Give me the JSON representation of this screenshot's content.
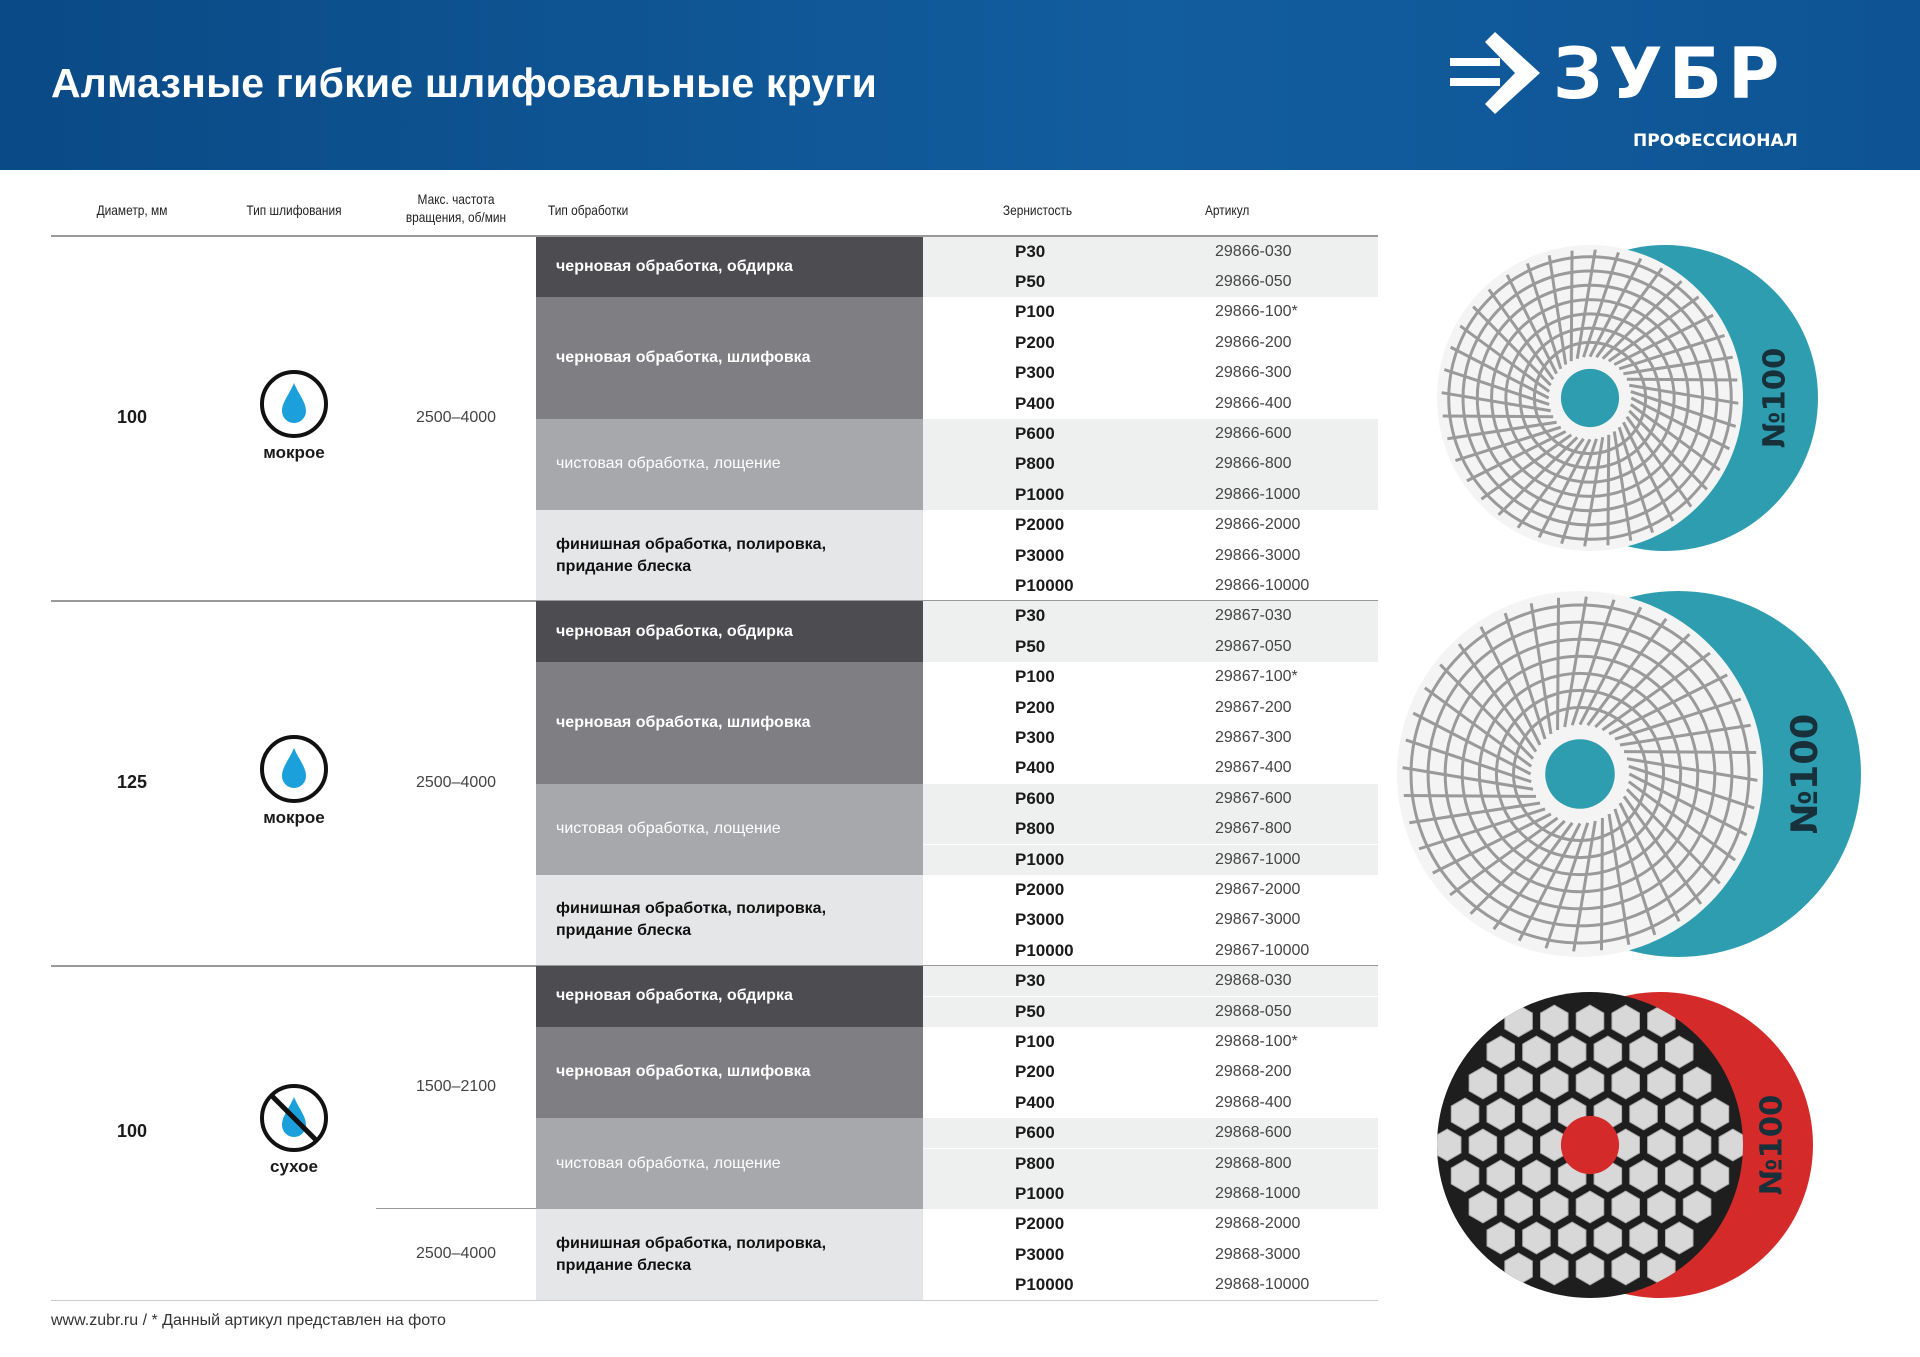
{
  "header": {
    "title": "Алмазные гибкие шлифовальные круги",
    "brand": "ЗУБР",
    "brand_sub": "ПРОФЕССИОНАЛ",
    "bg_color": "#0e5494"
  },
  "columns": {
    "diameter": "Диаметр, мм",
    "grinding_type": "Тип шлифования",
    "max_speed_1": "Макс. частота",
    "max_speed_2": "вращения, об/мин",
    "processing": "Тип обработки",
    "grit": "Зернистость",
    "article": "Артикул"
  },
  "processing_colors": [
    "#4c4c51",
    "#7e7e83",
    "#a7a8ac",
    "#e5e6e7"
  ],
  "sections": [
    {
      "diameter": "100",
      "mode": "мокрое",
      "mode_icon": "water-drop-icon",
      "speeds": [
        {
          "label": "2500–4000",
          "groups": [
            0,
            1,
            2,
            3
          ]
        }
      ],
      "groups": [
        {
          "label": "черновая обработка, обдирка",
          "items": [
            [
              "P30",
              "29866-030"
            ],
            [
              "P50",
              "29866-050"
            ]
          ]
        },
        {
          "label": "черновая обработка, шлифовка",
          "items": [
            [
              "P100",
              "29866-100*"
            ],
            [
              "P200",
              "29866-200"
            ],
            [
              "P300",
              "29866-300"
            ],
            [
              "P400",
              "29866-400"
            ]
          ]
        },
        {
          "label": "чистовая обработка, лощение",
          "items": [
            [
              "P600",
              "29866-600"
            ],
            [
              "P800",
              "29866-800"
            ],
            [
              "P1000",
              "29866-1000"
            ]
          ]
        },
        {
          "label": "финишная обработка, полировка, придание блеска",
          "items": [
            [
              "P2000",
              "29866-2000"
            ],
            [
              "P3000",
              "29866-3000"
            ],
            [
              "P10000",
              "29866-10000"
            ]
          ]
        }
      ]
    },
    {
      "diameter": "125",
      "mode": "мокрое",
      "mode_icon": "water-drop-icon",
      "speeds": [
        {
          "label": "2500–4000",
          "groups": [
            0,
            1,
            2,
            3
          ]
        }
      ],
      "groups": [
        {
          "label": "черновая обработка, обдирка",
          "items": [
            [
              "P30",
              "29867-030"
            ],
            [
              "P50",
              "29867-050"
            ]
          ]
        },
        {
          "label": "черновая обработка, шлифовка",
          "items": [
            [
              "P100",
              "29867-100*"
            ],
            [
              "P200",
              "29867-200"
            ],
            [
              "P300",
              "29867-300"
            ],
            [
              "P400",
              "29867-400"
            ]
          ]
        },
        {
          "label": "чистовая обработка, лощение",
          "items": [
            [
              "P600",
              "29867-600"
            ],
            [
              "P800",
              "29867-800"
            ],
            [
              "P1000",
              "29867-1000"
            ]
          ]
        },
        {
          "label": "финишная обработка, полировка, придание блеска",
          "items": [
            [
              "P2000",
              "29867-2000"
            ],
            [
              "P3000",
              "29867-3000"
            ],
            [
              "P10000",
              "29867-10000"
            ]
          ]
        }
      ]
    },
    {
      "diameter": "100",
      "mode": "сухое",
      "mode_icon": "no-water-icon",
      "speeds": [
        {
          "label": "1500–2100",
          "groups": [
            0,
            1,
            2
          ]
        },
        {
          "label": "2500–4000",
          "groups": [
            3
          ]
        }
      ],
      "groups": [
        {
          "label": "черновая обработка, обдирка",
          "items": [
            [
              "P30",
              "29868-030"
            ],
            [
              "P50",
              "29868-050"
            ]
          ]
        },
        {
          "label": "черновая обработка, шлифовка",
          "items": [
            [
              "P100",
              "29868-100*"
            ],
            [
              "P200",
              "29868-200"
            ],
            [
              "P400",
              "29868-400"
            ]
          ]
        },
        {
          "label": "чистовая обработка, лощение",
          "items": [
            [
              "P600",
              "29868-600"
            ],
            [
              "P800",
              "29868-800"
            ],
            [
              "P1000",
              "29868-1000"
            ]
          ]
        },
        {
          "label": "финишная обработка, полировка, придание блеска",
          "items": [
            [
              "P2000",
              "29868-2000"
            ],
            [
              "P3000",
              "29868-3000"
            ],
            [
              "P10000",
              "29868-10000"
            ]
          ]
        }
      ]
    }
  ],
  "photos": [
    {
      "label": "№100",
      "back_color": "#2f9db0",
      "type": "white-spiral"
    },
    {
      "label": "№100",
      "back_color": "#2f9db0",
      "type": "white-spiral"
    },
    {
      "label": "№100",
      "back_color": "#d42a2a",
      "type": "black-hex"
    }
  ],
  "footer": {
    "site": "www.zubr.ru",
    "note": "/  * Данный артикул представлен на фото"
  }
}
